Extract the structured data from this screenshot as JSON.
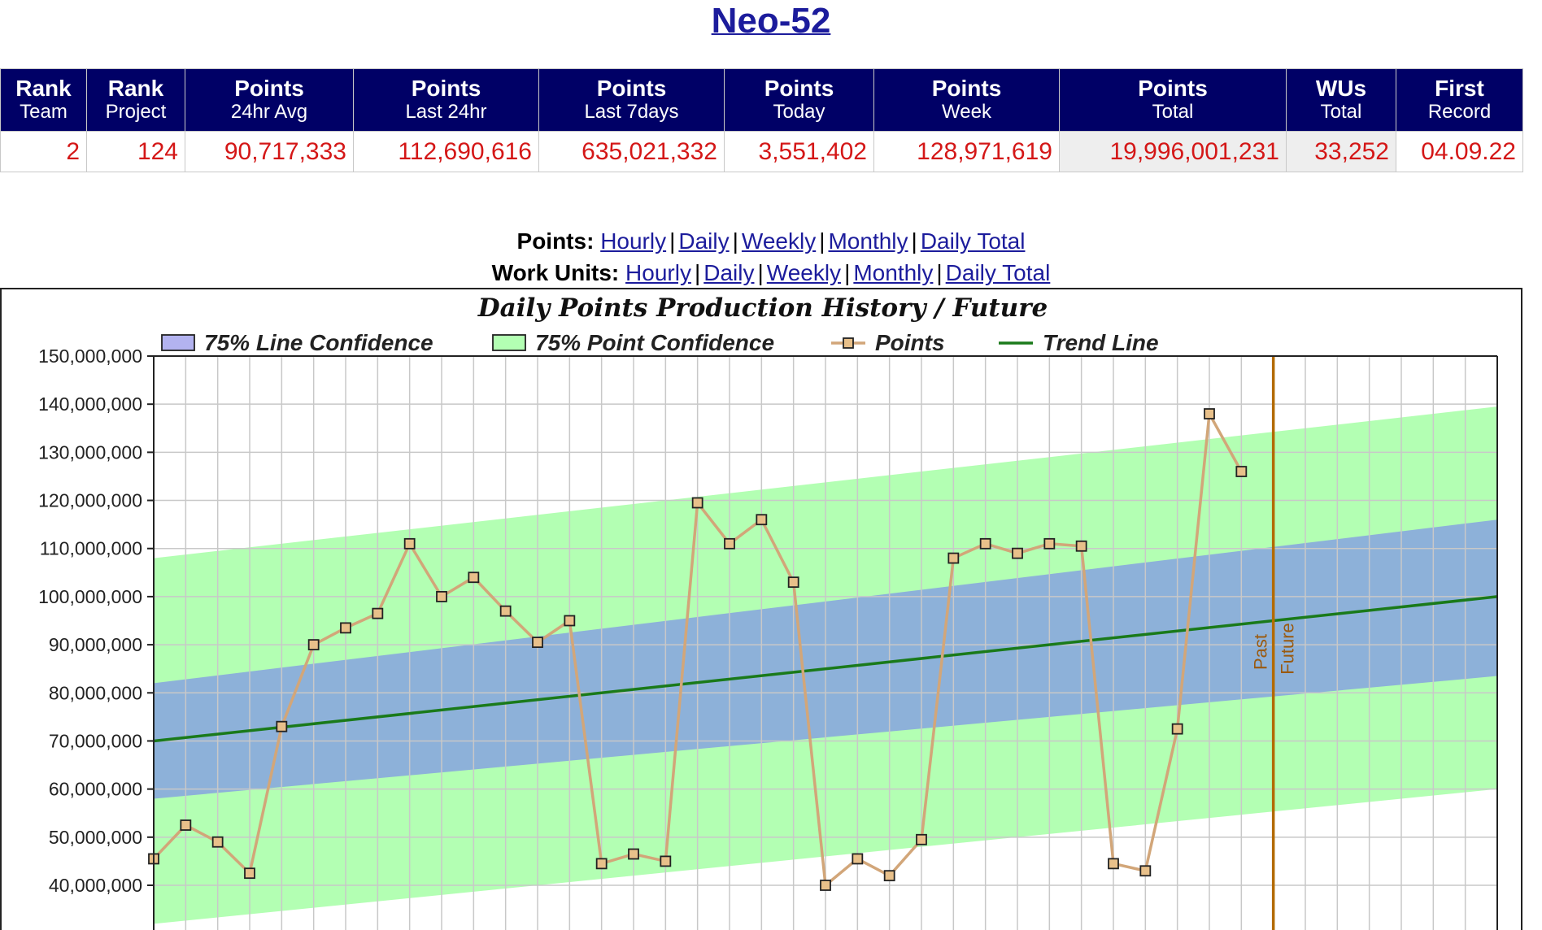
{
  "header": {
    "title": "Neo-52"
  },
  "stats": {
    "columns": [
      {
        "line1": "Rank",
        "line2": "Team"
      },
      {
        "line1": "Rank",
        "line2": "Project"
      },
      {
        "line1": "Points",
        "line2": "24hr Avg"
      },
      {
        "line1": "Points",
        "line2": "Last 24hr"
      },
      {
        "line1": "Points",
        "line2": "Last 7days"
      },
      {
        "line1": "Points",
        "line2": "Today"
      },
      {
        "line1": "Points",
        "line2": "Week"
      },
      {
        "line1": "Points",
        "line2": "Total"
      },
      {
        "line1": "WUs",
        "line2": "Total"
      },
      {
        "line1": "First",
        "line2": "Record"
      }
    ],
    "values": [
      "2",
      "124",
      "90,717,333",
      "112,690,616",
      "635,021,332",
      "3,551,402",
      "128,971,619",
      "19,996,001,231",
      "33,252",
      "04.09.22"
    ]
  },
  "nav": {
    "points": {
      "label": "Points:",
      "links": [
        "Hourly",
        "Daily",
        "Weekly",
        "Monthly",
        "Daily Total"
      ]
    },
    "work_units": {
      "label": "Work Units:",
      "links": [
        "Hourly",
        "Daily",
        "Weekly",
        "Monthly",
        "Daily Total"
      ]
    }
  },
  "chart_data": {
    "type": "line",
    "title": "Daily Points Production History / Future",
    "legend": [
      {
        "name": "75% Line Confidence",
        "color": "#b3b3f0"
      },
      {
        "name": "75% Point Confidence",
        "color": "#b3ffb3"
      },
      {
        "name": "Points",
        "color": "#d2a679"
      },
      {
        "name": "Trend Line",
        "color": "#1a7a1a"
      }
    ],
    "legend_position": "top",
    "grid": true,
    "ylim": [
      0,
      150000000
    ],
    "yticks": [
      "150,000,000",
      "140,000,000",
      "130,000,000",
      "120,000,000",
      "110,000,000",
      "100,000,000",
      "90,000,000",
      "80,000,000",
      "70,000,000",
      "60,000,000",
      "50,000,000",
      "40,000,000"
    ],
    "x_count": 43,
    "points": [
      45500000,
      52500000,
      49000000,
      42500000,
      73000000,
      90000000,
      93500000,
      96500000,
      111000000,
      100000000,
      104000000,
      97000000,
      90500000,
      95000000,
      44500000,
      46500000,
      45000000,
      119500000,
      111000000,
      116000000,
      103000000,
      40000000,
      45500000,
      42000000,
      49500000,
      108000000,
      111000000,
      109000000,
      111000000,
      110500000,
      44500000,
      43000000,
      72500000,
      138000000,
      126000000
    ],
    "trend": {
      "start": 70000000,
      "end": 100000000
    },
    "line_confidence": {
      "upper_start": 82000000,
      "upper_end": 116000000,
      "lower_start": 58000000,
      "lower_end": 83500000
    },
    "point_confidence": {
      "upper_start": 108000000,
      "upper_end": 139500000,
      "lower_start": 32000000,
      "lower_end": 60000000
    },
    "past_future_index": 35,
    "past_label": "Past",
    "future_label": "Future",
    "colors": {
      "point_band": "#b3ffb3",
      "line_band": "#8db1d9",
      "trend": "#1a7a1a",
      "points_line": "#d2a679",
      "marker_fill": "#e8c08a",
      "marker_stroke": "#222222",
      "divider": "#b36b00",
      "grid": "#c8c8c8"
    }
  }
}
